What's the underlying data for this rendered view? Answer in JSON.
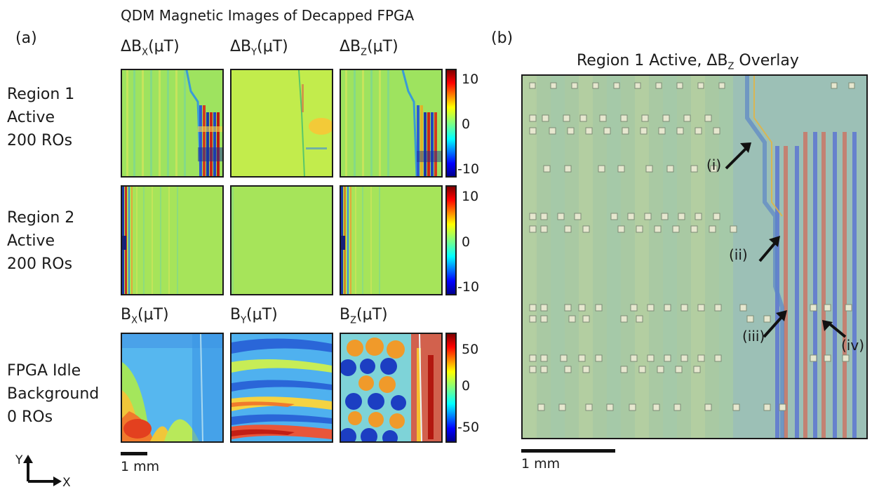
{
  "figure_title": "QDM Magnetic Images of Decapped FPGA",
  "panel_a_label": "(a)",
  "panel_b_label": "(b)",
  "top_columns": [
    {
      "base": "ΔB",
      "sub": "X",
      "unit": "(μT)"
    },
    {
      "base": "ΔB",
      "sub": "Y",
      "unit": "(μT)"
    },
    {
      "base": "ΔB",
      "sub": "Z",
      "unit": "(μT)"
    }
  ],
  "bottom_columns": [
    {
      "base": "B",
      "sub": "X",
      "unit": "(μT)"
    },
    {
      "base": "B",
      "sub": "Y",
      "unit": "(μT)"
    },
    {
      "base": "B",
      "sub": "Z",
      "unit": "(μT)"
    }
  ],
  "rows": [
    {
      "line1": "Region 1",
      "line2": "Active",
      "line3": "200 ROs"
    },
    {
      "line1": "Region 2",
      "line2": "Active",
      "line3": "200 ROs"
    },
    {
      "line1": "FPGA Idle",
      "line2": "Background",
      "line3": "0 ROs"
    }
  ],
  "colorbars": [
    {
      "ticks": [
        "10",
        "0",
        "-10"
      ],
      "range": [
        -12,
        12
      ]
    },
    {
      "ticks": [
        "10",
        "0",
        "-10"
      ],
      "range": [
        -12,
        12
      ]
    },
    {
      "ticks": [
        "50",
        "0",
        "-50"
      ],
      "range": [
        -65,
        65
      ]
    }
  ],
  "scalebar_a": "1 mm",
  "axes": {
    "y": "Y",
    "x": "X"
  },
  "panel_b": {
    "title_pre": "Region 1 Active, ΔB",
    "title_sub": "Z",
    "title_post": " Overlay",
    "annotations": [
      "(i)",
      "(ii)",
      "(iii)",
      "(iv)"
    ],
    "scalebar": "1 mm"
  },
  "colors": {
    "jet_low": "#00008f",
    "jet_mid": "#7fff7f",
    "jet_high": "#800000"
  }
}
